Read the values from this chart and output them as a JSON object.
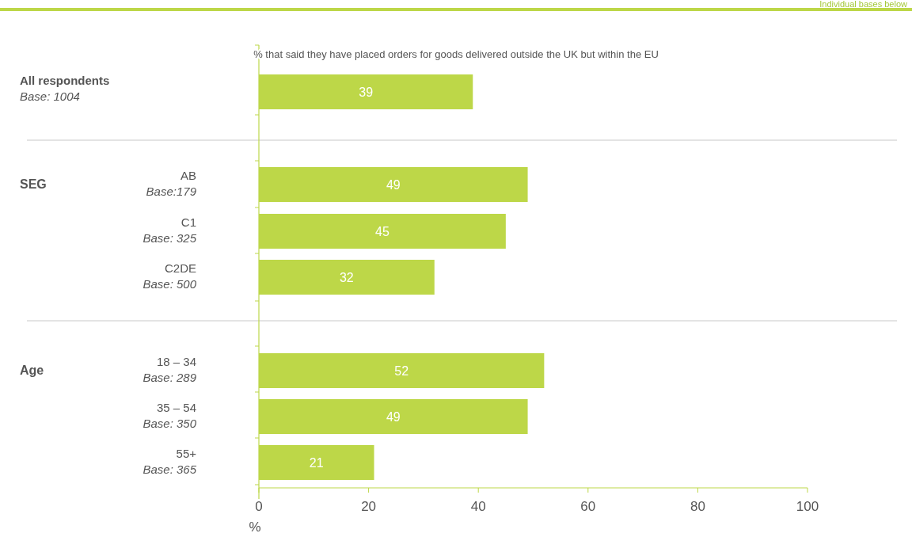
{
  "chart_data": {
    "type": "bar",
    "orientation": "horizontal",
    "title": "% that said they have placed orders for goods delivered outside the UK but within the EU",
    "xlabel": "%",
    "categories": [
      null,
      "AB\nBase:179",
      "C1\nBase: 325",
      "C2DE\nBase: 500",
      "18 – 34\nBase: 289",
      "35 – 54\nBase: 350",
      "55+\nBase: 365"
    ],
    "values": [
      39,
      49,
      45,
      32,
      52,
      49,
      21
    ],
    "color": "#bdd748",
    "data_labels": true,
    "xlim": [
      0,
      100
    ],
    "xticks": [
      0,
      20,
      40,
      60,
      80,
      100
    ],
    "annotations": [
      "Individual bases below",
      "All respondents\nBase: 1004",
      "SEG",
      "Age"
    ]
  }
}
